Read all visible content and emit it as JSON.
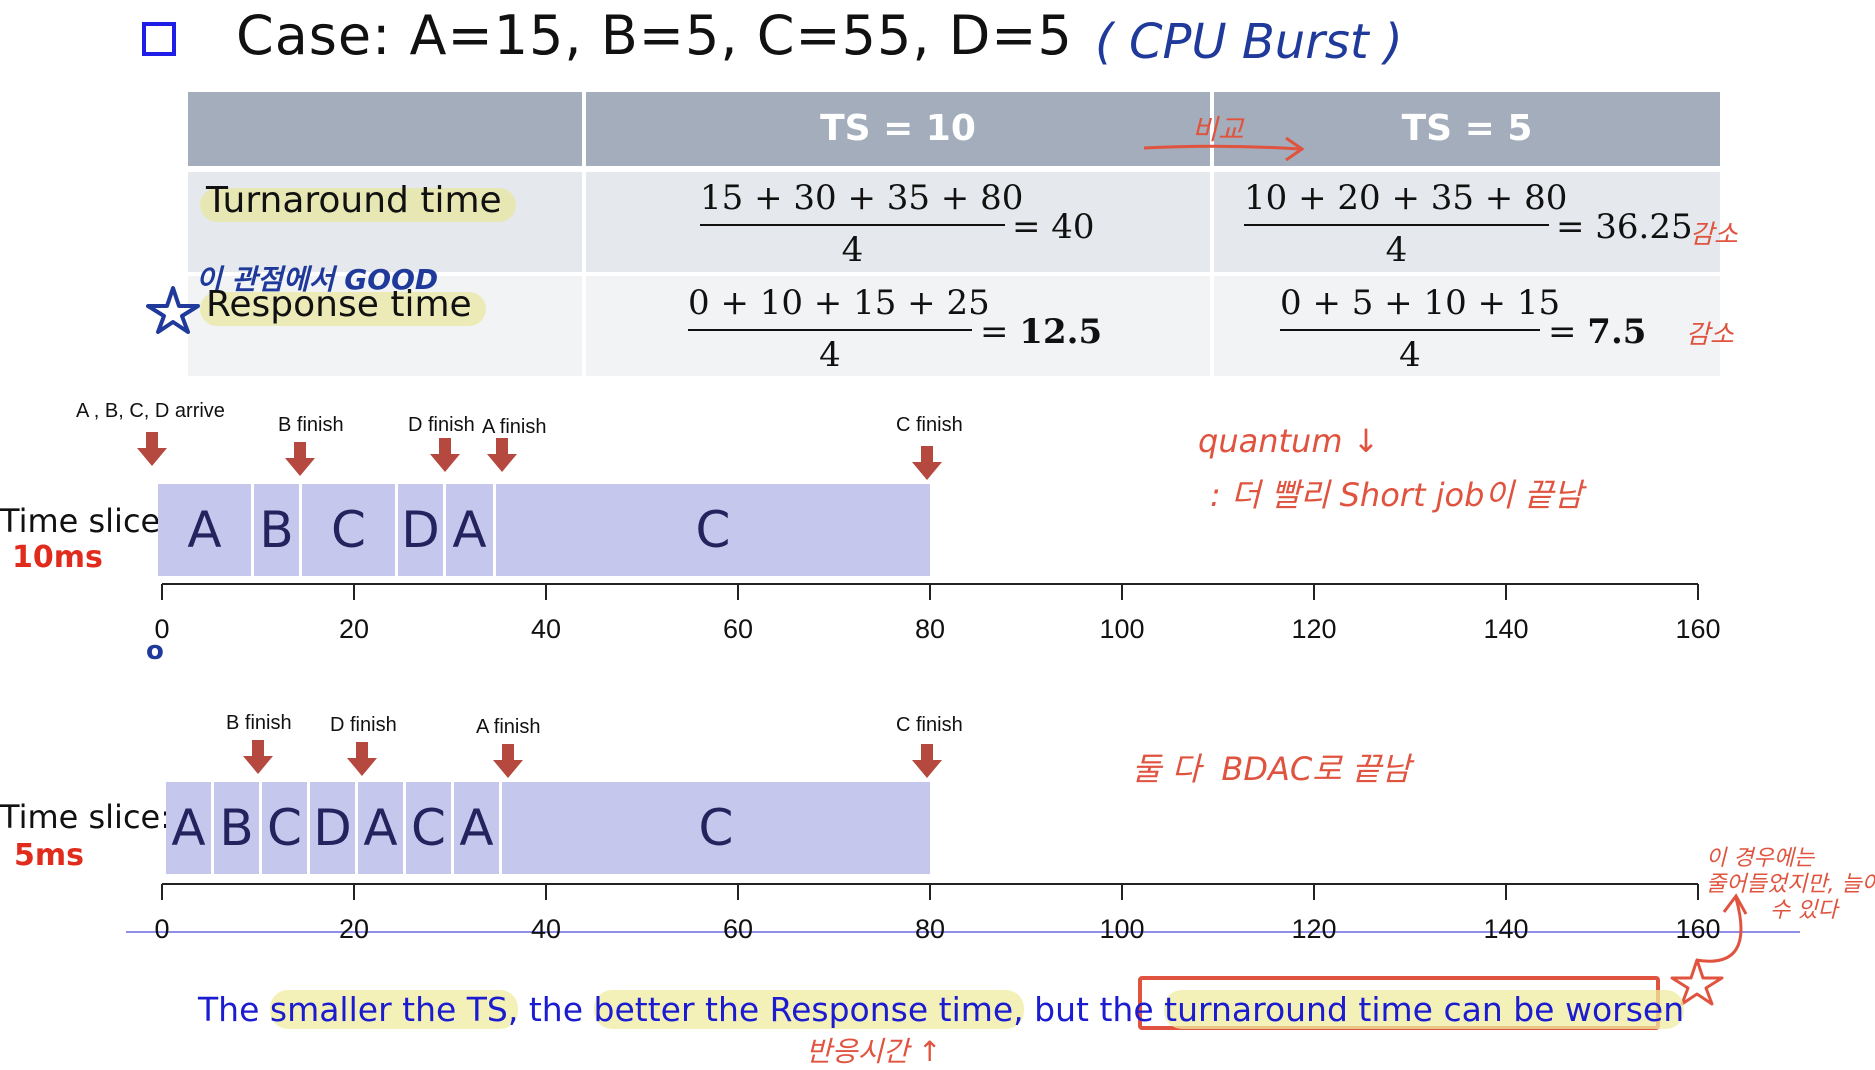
{
  "title": {
    "text": "Case: A=15, B=5, C=55, D=5",
    "note": "( CPU Burst )"
  },
  "table": {
    "headers": [
      "TS = 10",
      "TS = 5"
    ],
    "compare_note": "비교",
    "rows": [
      {
        "label": "Turnaround time",
        "ts10": {
          "numerator": "15 + 30 + 35 + 80",
          "denominator": "4",
          "result": "= 40"
        },
        "ts5": {
          "numerator": "10 + 20 + 35 + 80",
          "denominator": "4",
          "result": "= 36.25"
        },
        "ts5_note": "감소"
      },
      {
        "label": "Response time",
        "label_note": "이 관점에서 GOOD",
        "ts10": {
          "numerator": "0 + 10 + 15 + 25",
          "denominator": "4",
          "result_prefix": "= ",
          "result_bold": "12.5"
        },
        "ts5": {
          "numerator": "0 + 5 + 10 + 15",
          "denominator": "4",
          "result_prefix": "= ",
          "result_bold": "7.5"
        },
        "ts5_note": "감소"
      }
    ]
  },
  "gantt10": {
    "label": "Time slice",
    "value": "10ms",
    "events": {
      "arrive": "A , B, C, D arrive",
      "b": "B finish",
      "d": "D finish",
      "a": "A finish",
      "c": "C finish"
    },
    "segments": [
      "A",
      "B",
      "C",
      "D",
      "A",
      "C"
    ],
    "note_line1": "quantum ↓",
    "note_line2": ": 더 빨리 Short job이 끝남",
    "zero_note": "o"
  },
  "gantt5": {
    "label": "Time slice:",
    "value": "5ms",
    "events": {
      "b": "B finish",
      "d": "D finish",
      "a": "A finish",
      "c": "C finish"
    },
    "segments": [
      "A",
      "B",
      "C",
      "D",
      "A",
      "C",
      "A",
      "C"
    ],
    "note": "둘 다  BDAC로 끝남",
    "side_note_line1": "이 경우에는",
    "side_note_line2": "줄어들었지만, 늘어날",
    "side_note_line3": "수 있다"
  },
  "axis_ticks": [
    "0",
    "20",
    "40",
    "60",
    "80",
    "100",
    "120",
    "140",
    "160"
  ],
  "bottom": {
    "p1": "The ",
    "p2": "smaller the TS,",
    "p3": " the ",
    "p4": "better the Response time,",
    "p5": " but the ",
    "p6": "turnaround time can be worsen",
    "below_note": "반응시간 ↑"
  },
  "colors": {
    "header_bg": "#a3adbb",
    "bar_fill": "#c5c7ec",
    "arrow": "#b5483f",
    "accent_red": "#e02b1d",
    "bottom_text": "#1b1bd0"
  }
}
